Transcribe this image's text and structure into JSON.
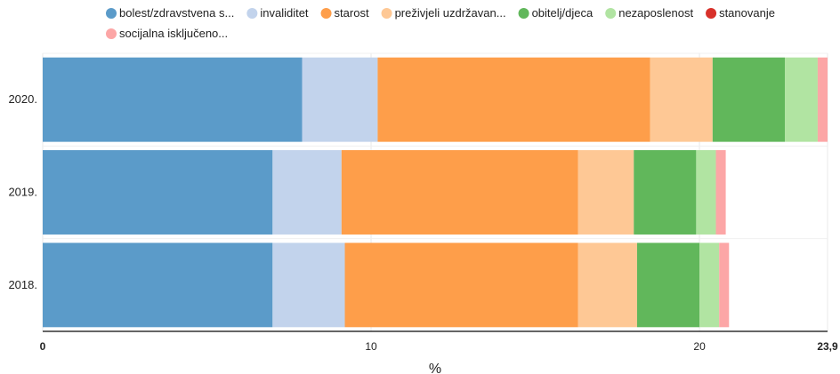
{
  "chart_data": {
    "type": "bar",
    "orientation": "horizontal",
    "stacked": true,
    "categories": [
      "2020.",
      "2019.",
      "2018."
    ],
    "series": [
      {
        "name": "bolest/zdravstvena s...",
        "color": "#5b9bc9",
        "values": [
          7.9,
          7.0,
          7.0
        ]
      },
      {
        "name": "invaliditet",
        "color": "#c2d3ec",
        "values": [
          2.3,
          2.1,
          2.2
        ]
      },
      {
        "name": "starost",
        "color": "#fe9e4a",
        "values": [
          8.3,
          7.2,
          7.1
        ]
      },
      {
        "name": "preživjeli uzdržavan...",
        "color": "#fec895",
        "values": [
          1.9,
          1.7,
          1.8
        ]
      },
      {
        "name": "obitelj/djeca",
        "color": "#61b75b",
        "values": [
          2.2,
          1.9,
          1.9
        ]
      },
      {
        "name": "nezaposlenost",
        "color": "#b1e4a2",
        "values": [
          1.0,
          0.6,
          0.6
        ]
      },
      {
        "name": "stanovanje",
        "color": "#d8312a",
        "values": [
          0.0,
          0.0,
          0.0
        ]
      },
      {
        "name": "socijalna isključeno...",
        "color": "#fca6a6",
        "values": [
          0.3,
          0.3,
          0.3
        ]
      }
    ],
    "xlabel": "%",
    "ylabel": "",
    "xlim": [
      0,
      23.9
    ],
    "xticks": [
      "0",
      "10",
      "20",
      "23,9"
    ],
    "grid": true,
    "legend": "top"
  }
}
